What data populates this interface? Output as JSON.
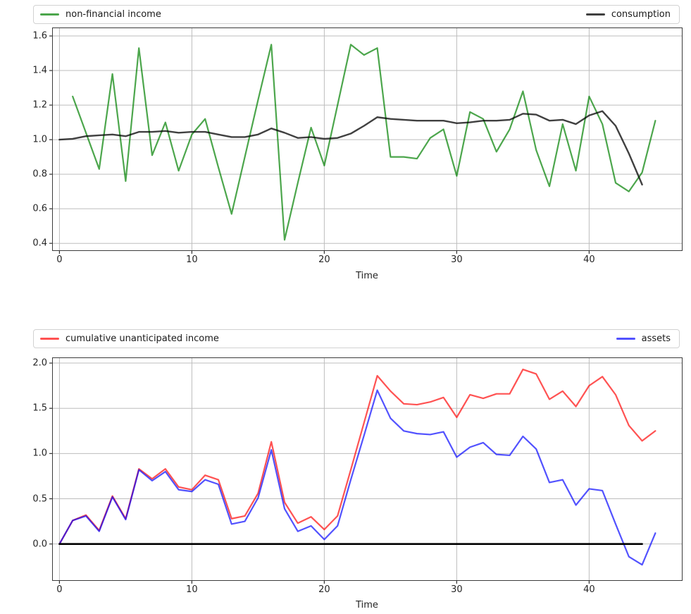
{
  "figure": {
    "background": "#ffffff"
  },
  "chart_data": [
    {
      "type": "line",
      "title": "",
      "xlabel": "Time",
      "xlim": [
        -0.5,
        47.0
      ],
      "ylim": [
        0.36,
        1.645
      ],
      "x_ticks": [
        "0",
        "10",
        "20",
        "30",
        "40"
      ],
      "y_ticks": [
        "0.4",
        "0.6",
        "0.8",
        "1.0",
        "1.2",
        "1.4",
        "1.6"
      ],
      "grid": true,
      "legend_position": "above axes, expanded two-column",
      "series": [
        {
          "name": "non-financial income",
          "color": "rgba(0,128,0,0.7)",
          "linewidth": 2.2,
          "x_start": 1,
          "values": [
            1.25,
            1.04,
            0.83,
            1.38,
            0.76,
            1.53,
            0.91,
            1.1,
            0.82,
            1.03,
            1.12,
            0.84,
            0.57,
            0.9,
            1.23,
            1.55,
            0.42,
            0.75,
            1.07,
            0.85,
            1.2,
            1.55,
            1.49,
            1.53,
            0.9,
            0.9,
            0.89,
            1.01,
            1.06,
            0.79,
            1.16,
            1.12,
            0.93,
            1.06,
            1.28,
            0.94,
            0.73,
            1.09,
            0.82,
            1.25,
            1.09,
            0.75,
            0.7,
            0.81,
            1.11
          ]
        },
        {
          "name": "consumption",
          "color": "rgba(0,0,0,0.75)",
          "linewidth": 2.4,
          "x_start": 0,
          "values": [
            1.0,
            1.005,
            1.02,
            1.025,
            1.03,
            1.02,
            1.045,
            1.045,
            1.05,
            1.04,
            1.045,
            1.045,
            1.03,
            1.015,
            1.015,
            1.03,
            1.065,
            1.04,
            1.01,
            1.015,
            1.005,
            1.01,
            1.035,
            1.08,
            1.13,
            1.12,
            1.115,
            1.11,
            1.11,
            1.11,
            1.095,
            1.1,
            1.11,
            1.11,
            1.115,
            1.15,
            1.145,
            1.11,
            1.115,
            1.09,
            1.14,
            1.165,
            1.08,
            0.92,
            0.74
          ]
        }
      ]
    },
    {
      "type": "line",
      "title": "",
      "xlabel": "Time",
      "xlim": [
        -0.5,
        47.0
      ],
      "ylim": [
        -0.4,
        2.055
      ],
      "x_ticks": [
        "0",
        "10",
        "20",
        "30",
        "40"
      ],
      "y_ticks": [
        "0.0",
        "0.5",
        "1.0",
        "1.5",
        "2.0"
      ],
      "grid": true,
      "legend_position": "above axes, expanded two-column",
      "series": [
        {
          "name": "cumulative unanticipated income",
          "color": "rgba(255,0,0,0.68)",
          "linewidth": 2.2,
          "x_start": 0,
          "values": [
            0.0,
            0.26,
            0.32,
            0.15,
            0.53,
            0.28,
            0.83,
            0.72,
            0.83,
            0.63,
            0.6,
            0.76,
            0.71,
            0.28,
            0.31,
            0.56,
            1.13,
            0.46,
            0.23,
            0.3,
            0.16,
            0.31,
            0.82,
            1.34,
            1.86,
            1.69,
            1.55,
            1.54,
            1.57,
            1.62,
            1.4,
            1.65,
            1.61,
            1.66,
            1.66,
            1.93,
            1.88,
            1.6,
            1.69,
            1.52,
            1.75,
            1.85,
            1.65,
            1.31,
            1.14,
            1.25
          ]
        },
        {
          "name": "assets",
          "color": "rgba(0,0,255,0.68)",
          "linewidth": 2.2,
          "x_start": 0,
          "values": [
            0.0,
            0.26,
            0.31,
            0.14,
            0.52,
            0.27,
            0.82,
            0.7,
            0.8,
            0.6,
            0.58,
            0.71,
            0.66,
            0.22,
            0.25,
            0.51,
            1.04,
            0.39,
            0.14,
            0.2,
            0.05,
            0.2,
            0.71,
            1.2,
            1.7,
            1.39,
            1.25,
            1.22,
            1.21,
            1.24,
            0.96,
            1.07,
            1.12,
            0.99,
            0.98,
            1.19,
            1.05,
            0.68,
            0.71,
            0.43,
            0.61,
            0.59,
            0.22,
            -0.14,
            -0.23,
            0.12
          ]
        },
        {
          "name": "zero line",
          "color": "#000000",
          "linewidth": 2.6,
          "x_points": [
            0,
            44
          ],
          "values": [
            0,
            0
          ],
          "in_legend": false
        }
      ]
    }
  ]
}
